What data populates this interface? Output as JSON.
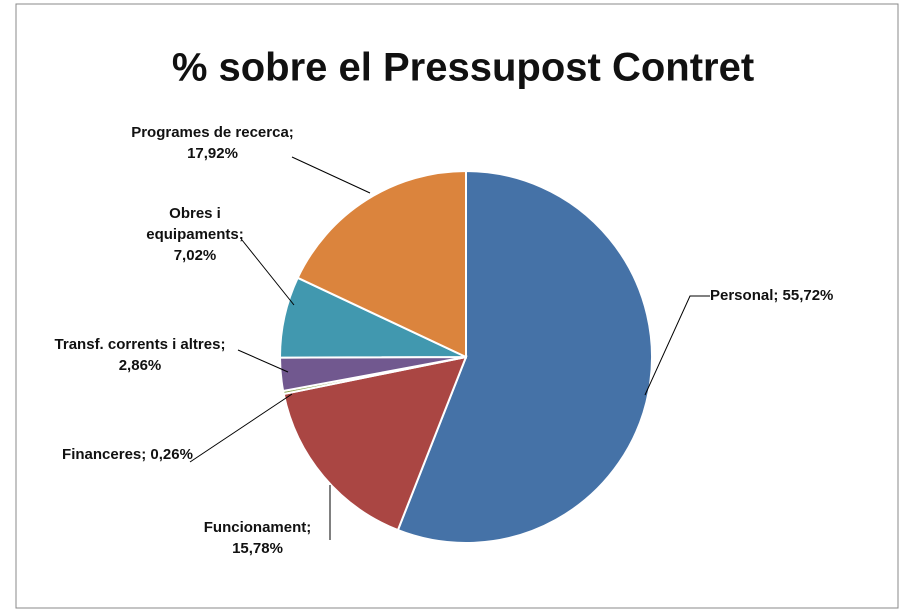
{
  "chart_data": {
    "type": "pie",
    "title": "% sobre el Pressupost Contret",
    "labels": [
      "Personal; 55,72%",
      "Funcionament; 15,78%",
      "Financeres; 0,26%",
      "Transf. corrents i altres; 2,86%",
      "Obres i equipaments; 7,02%",
      "Programes de recerca; 17,92%"
    ],
    "values": [
      55.72,
      15.78,
      0.26,
      2.86,
      7.02,
      17.92
    ],
    "colors": [
      "#4572a7",
      "#aa4643",
      "#89a54e",
      "#71588f",
      "#4198af",
      "#db843d"
    ]
  }
}
